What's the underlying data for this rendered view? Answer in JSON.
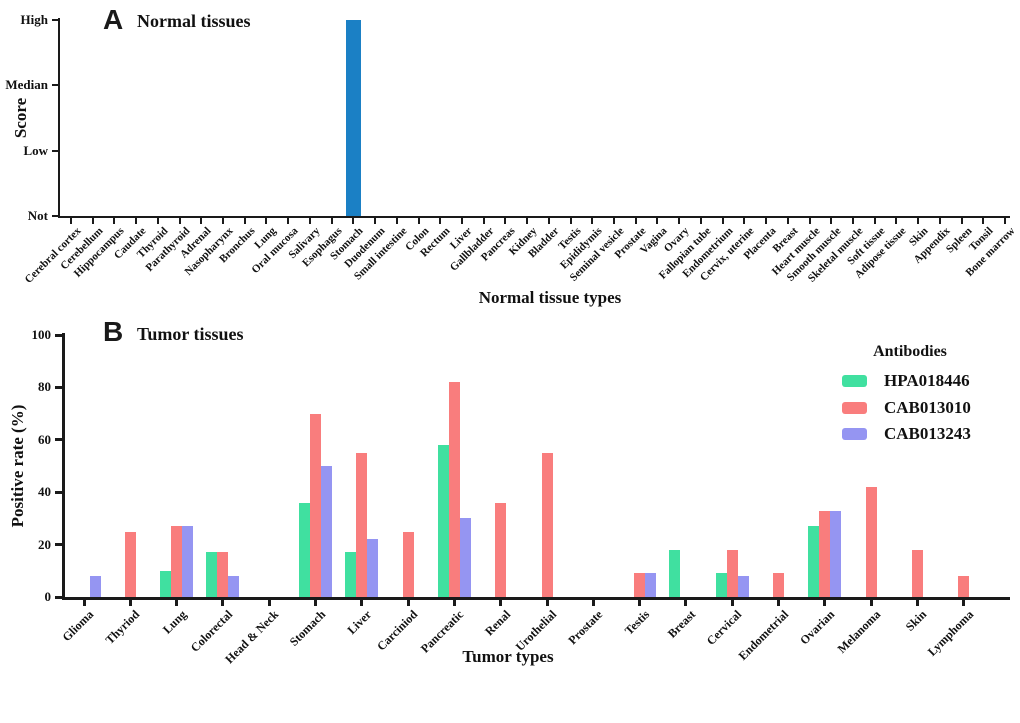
{
  "figure": {
    "background": "#ffffff",
    "axis_color": "#1a1a1a"
  },
  "chart_data": [
    {
      "id": "panel-a",
      "type": "bar",
      "panel_letter": "A",
      "title": "Normal tissues",
      "xlabel": "Normal tissue types",
      "ylabel": "Score",
      "ylim": [
        0,
        3
      ],
      "y_ticks": [
        "Not",
        "Low",
        "Median",
        "High"
      ],
      "grid": false,
      "bar_color": "#1b80c5",
      "categories": [
        "Cerebral cortex",
        "Cerebellum",
        "Hippocampus",
        "Caudate",
        "Thyroid",
        "Parathyroid",
        "Adrenal",
        "Nasopharynx",
        "Bronchus",
        "Lung",
        "Oral mucosa",
        "Salivary",
        "Esophagus",
        "Stomach",
        "Duodenum",
        "Small intestine",
        "Colon",
        "Rectum",
        "Liver",
        "Gallbladder",
        "Pancreas",
        "Kidney",
        "Bladder",
        "Testis",
        "Epididymis",
        "Seminal vesicle",
        "Prostate",
        "Vagina",
        "Ovary",
        "Fallopian tube",
        "Endometrium",
        "Cervix, uterine",
        "Placenta",
        "Breast",
        "Heart muscle",
        "Smooth muscle",
        "Skeletal muscle",
        "Soft tissue",
        "Adipose tissue",
        "Skin",
        "Appendix",
        "Spleen",
        "Tonsil",
        "Bone marrow"
      ],
      "values": [
        0,
        0,
        0,
        0,
        0,
        0,
        0,
        0,
        0,
        0,
        0,
        0,
        0,
        3,
        0,
        0,
        0,
        0,
        0,
        0,
        0,
        0,
        0,
        0,
        0,
        0,
        0,
        0,
        0,
        0,
        0,
        0,
        0,
        0,
        0,
        0,
        0,
        0,
        0,
        0,
        0,
        0,
        0,
        0
      ]
    },
    {
      "id": "panel-b",
      "type": "grouped-bar",
      "panel_letter": "B",
      "title": "Tumor tissues",
      "xlabel": "Tumor types",
      "ylabel": "Positive rate (%)",
      "ylim": [
        0,
        100
      ],
      "y_ticks": [
        0,
        20,
        40,
        60,
        80,
        100
      ],
      "grid": false,
      "legend_title": "Antibodies",
      "legend_position": "upper-right",
      "categories": [
        "Glioma",
        "Thyriod",
        "Lung",
        "Colorectal",
        "Head & Neck",
        "Stomach",
        "Liver",
        "Carciniod",
        "Pancreatic",
        "Renal",
        "Urothelial",
        "Prostate",
        "Testis",
        "Breast",
        "Cervical",
        "Endometrial",
        "Ovarian",
        "Melanoma",
        "Skin",
        "Lymphoma"
      ],
      "series": [
        {
          "name": "HPA018446",
          "color": "#40e0a0",
          "values": [
            0,
            0,
            10,
            17,
            0,
            36,
            17,
            0,
            58,
            0,
            0,
            0,
            0,
            18,
            9,
            0,
            27,
            0,
            0,
            0
          ]
        },
        {
          "name": "CAB013010",
          "color": "#f97d7d",
          "values": [
            0,
            25,
            27,
            17,
            0,
            70,
            55,
            25,
            82,
            36,
            55,
            0,
            9,
            0,
            18,
            9,
            33,
            42,
            18,
            8
          ]
        },
        {
          "name": "CAB013243",
          "color": "#9595f2",
          "values": [
            8,
            0,
            27,
            8,
            0,
            50,
            22,
            0,
            30,
            0,
            0,
            0,
            9,
            0,
            8,
            0,
            33,
            0,
            0,
            0
          ]
        }
      ]
    }
  ]
}
